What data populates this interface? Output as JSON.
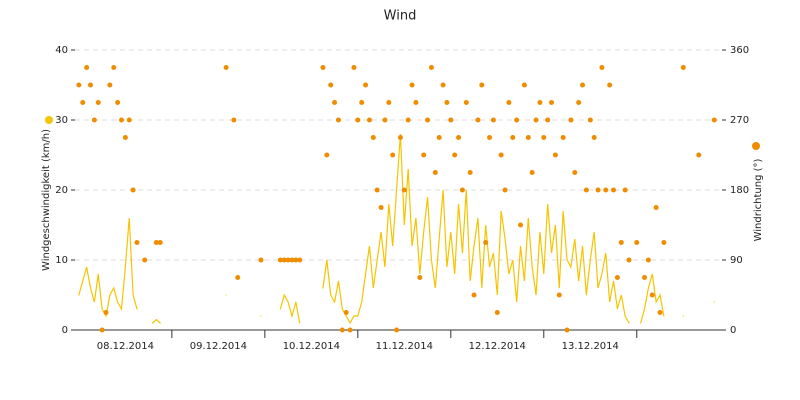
{
  "chart_data": {
    "type": "line-scatter",
    "title": "Wind",
    "xlim": [
      -1,
      166
    ],
    "xticks": [
      24,
      48,
      72,
      96,
      120,
      144
    ],
    "xlabels": [
      {
        "value": 12,
        "label": "08.12.2014"
      },
      {
        "value": 36,
        "label": "09.12.2014"
      },
      {
        "value": 60,
        "label": "10.12.2014"
      },
      {
        "value": 84,
        "label": "11.12.2014"
      },
      {
        "value": 108,
        "label": "12.12.2014"
      },
      {
        "value": 132,
        "label": "13.12.2014"
      }
    ],
    "ylim": [
      0,
      40
    ],
    "yticks": [
      0,
      10,
      20,
      30,
      40
    ],
    "y2lim": [
      0,
      360
    ],
    "y2ticks": [
      0,
      90,
      180,
      270,
      360
    ],
    "grid": true,
    "x": [
      0,
      1,
      2,
      3,
      4,
      5,
      6,
      7,
      8,
      9,
      10,
      11,
      12,
      13,
      14,
      15,
      16,
      17,
      18,
      19,
      20,
      21,
      22,
      23,
      24,
      25,
      26,
      27,
      28,
      29,
      30,
      31,
      32,
      33,
      34,
      35,
      36,
      37,
      38,
      39,
      40,
      41,
      42,
      43,
      44,
      45,
      46,
      47,
      48,
      49,
      50,
      51,
      52,
      53,
      54,
      55,
      56,
      57,
      58,
      59,
      60,
      61,
      62,
      63,
      64,
      65,
      66,
      67,
      68,
      69,
      70,
      71,
      72,
      73,
      74,
      75,
      76,
      77,
      78,
      79,
      80,
      81,
      82,
      83,
      84,
      85,
      86,
      87,
      88,
      89,
      90,
      91,
      92,
      93,
      94,
      95,
      96,
      97,
      98,
      99,
      100,
      101,
      102,
      103,
      104,
      105,
      106,
      107,
      108,
      109,
      110,
      111,
      112,
      113,
      114,
      115,
      116,
      117,
      118,
      119,
      120,
      121,
      122,
      123,
      124,
      125,
      126,
      127,
      128,
      129,
      130,
      131,
      132,
      133,
      134,
      135,
      136,
      137,
      138,
      139,
      140,
      141,
      142,
      143,
      144,
      145,
      146,
      147,
      148,
      149,
      150,
      151,
      152,
      153,
      154,
      155,
      156,
      157,
      158,
      159,
      160,
      161,
      162,
      163,
      164,
      165
    ],
    "series": [
      {
        "name": "Windgeschwindigkeit (km/h)",
        "color": "#f5c400",
        "style": "line",
        "axis": "y",
        "values": [
          5,
          7,
          9,
          6,
          4,
          8,
          3,
          2,
          5,
          6,
          4,
          3,
          9,
          16,
          5,
          3,
          null,
          null,
          null,
          1,
          1.5,
          1,
          null,
          null,
          null,
          null,
          null,
          null,
          null,
          null,
          null,
          null,
          null,
          null,
          null,
          null,
          null,
          null,
          5,
          null,
          null,
          null,
          null,
          null,
          null,
          null,
          null,
          2,
          null,
          null,
          null,
          null,
          3,
          5,
          4,
          2,
          4,
          1,
          null,
          null,
          null,
          null,
          null,
          6,
          10,
          5,
          4,
          7,
          3,
          2,
          1,
          2,
          2,
          4,
          8,
          12,
          6,
          10,
          14,
          9,
          18,
          12,
          20,
          28,
          15,
          23,
          12,
          16,
          8,
          14,
          19,
          10,
          6,
          13,
          20,
          9,
          14,
          8,
          18,
          11,
          20,
          7,
          12,
          16,
          6,
          15,
          9,
          11,
          5,
          17,
          13,
          8,
          10,
          4,
          12,
          7,
          16,
          9,
          5,
          14,
          8,
          18,
          11,
          15,
          6,
          17,
          10,
          9,
          13,
          7,
          12,
          5,
          10,
          14,
          6,
          8,
          11,
          4,
          7,
          3,
          5,
          2,
          1,
          null,
          null,
          1,
          3,
          6,
          8,
          4,
          5,
          2,
          null,
          null,
          null,
          null,
          2,
          null,
          null,
          null,
          null,
          null,
          null,
          null,
          4,
          null
        ]
      },
      {
        "name": "Windrichtung (°)",
        "color": "#f08c00",
        "style": "scatter",
        "axis": "y2",
        "values": [
          315,
          292.5,
          337.5,
          315,
          270,
          292.5,
          0,
          22.5,
          315,
          337.5,
          292.5,
          270,
          247.5,
          270,
          180,
          112.5,
          null,
          90,
          null,
          null,
          112.5,
          112.5,
          null,
          null,
          null,
          null,
          null,
          null,
          null,
          null,
          null,
          null,
          null,
          null,
          null,
          null,
          null,
          null,
          337.5,
          null,
          270,
          67.5,
          null,
          null,
          null,
          null,
          null,
          90,
          null,
          null,
          null,
          null,
          90,
          90,
          90,
          90,
          90,
          90,
          null,
          null,
          null,
          null,
          null,
          337.5,
          225,
          315,
          292.5,
          270,
          0,
          22.5,
          0,
          337.5,
          270,
          292.5,
          315,
          270,
          247.5,
          180,
          157.5,
          270,
          292.5,
          225,
          0,
          247.5,
          180,
          270,
          315,
          292.5,
          67.5,
          225,
          270,
          337.5,
          202.5,
          247.5,
          315,
          292.5,
          270,
          225,
          247.5,
          180,
          292.5,
          202.5,
          45,
          270,
          315,
          112.5,
          247.5,
          270,
          22.5,
          225,
          180,
          292.5,
          247.5,
          270,
          135,
          315,
          247.5,
          202.5,
          270,
          292.5,
          247.5,
          270,
          292.5,
          225,
          45,
          247.5,
          0,
          270,
          202.5,
          292.5,
          315,
          180,
          270,
          247.5,
          180,
          337.5,
          180,
          315,
          180,
          67.5,
          112.5,
          180,
          90,
          null,
          112.5,
          null,
          67.5,
          90,
          45,
          157.5,
          22.5,
          112.5,
          null,
          null,
          null,
          null,
          337.5,
          null,
          null,
          null,
          225,
          null,
          null,
          null,
          270,
          null
        ]
      }
    ]
  }
}
